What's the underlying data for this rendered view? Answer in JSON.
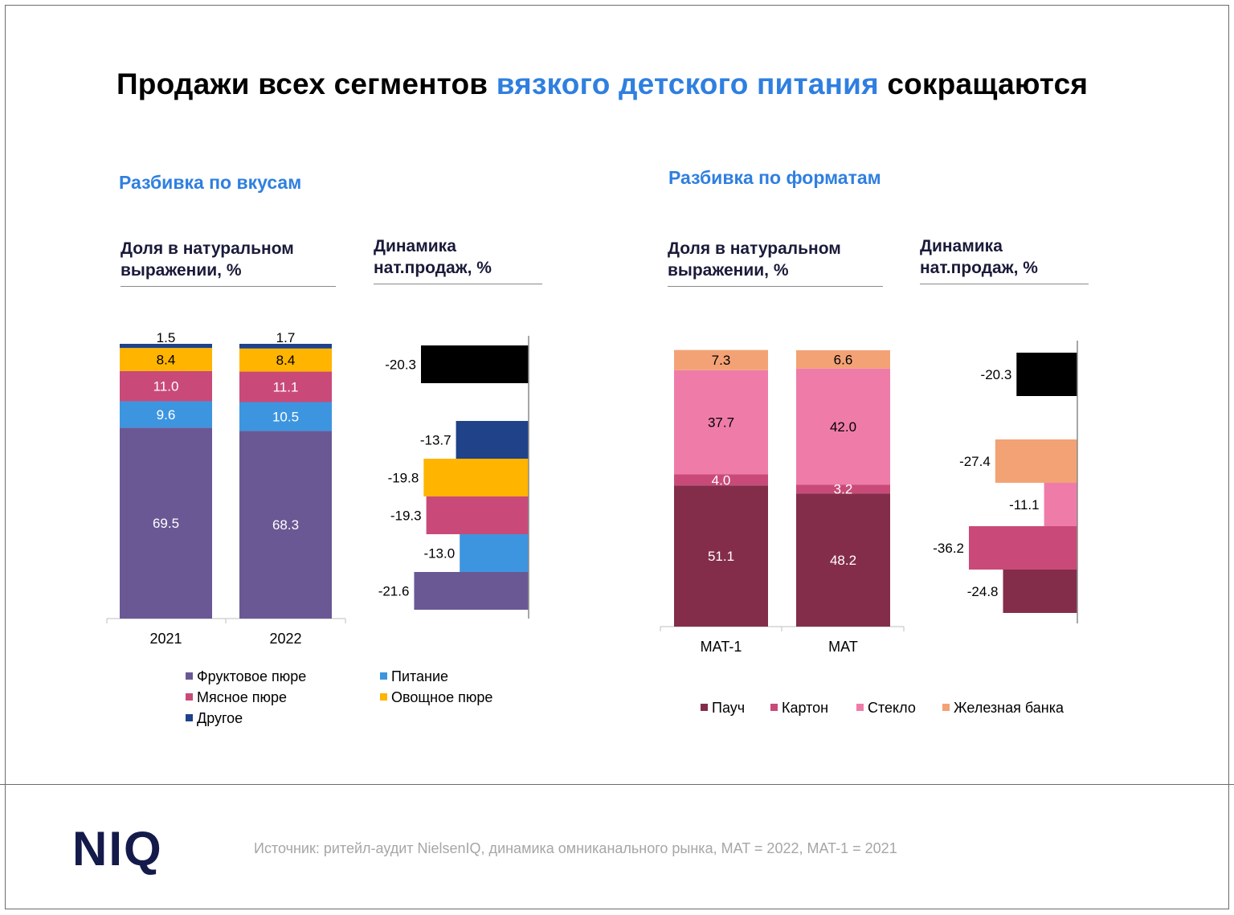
{
  "title": {
    "part1": "Продажи всех сегментов ",
    "highlight": "вязкого детского питания",
    "part2": " сокращаются"
  },
  "left": {
    "subtitle": "Разбивка по вкусам",
    "share_header": "Доля в натуральном выражении, %",
    "dyn_header": "Динамика нат.продаж, %"
  },
  "right": {
    "subtitle": "Разбивка по форматам",
    "share_header": "Доля в натуральном выражении, %",
    "dyn_header": "Динамика нат.продаж, %"
  },
  "colors": {
    "fruit": "#6a5895",
    "nutrition": "#3d95e0",
    "meat": "#c94a78",
    "veg": "#ffb400",
    "other": "#1f4289",
    "pouch": "#842d4a",
    "carton": "#c94a78",
    "glass": "#ef7ca8",
    "can": "#f3a276",
    "total": "#000000"
  },
  "chart_data": [
    {
      "type": "bar",
      "stacked": true,
      "name": "taste-share",
      "categories": [
        "2021",
        "2022"
      ],
      "series": [
        {
          "name": "Фруктовое пюре",
          "color_key": "fruit",
          "values": [
            69.5,
            68.3
          ],
          "labels": [
            "69.5",
            "68.3"
          ]
        },
        {
          "name": "Питание",
          "color_key": "nutrition",
          "values": [
            9.6,
            10.5
          ],
          "labels": [
            "9.6",
            "10.5"
          ]
        },
        {
          "name": "Мясное пюре",
          "color_key": "meat",
          "values": [
            11.0,
            11.1
          ],
          "labels": [
            "11.0",
            "11.1"
          ]
        },
        {
          "name": "Овощное пюре",
          "color_key": "veg",
          "values": [
            8.4,
            8.4
          ],
          "labels": [
            "8.4",
            "8.4"
          ]
        },
        {
          "name": "Другое",
          "color_key": "other",
          "values": [
            1.5,
            1.7
          ],
          "labels": [
            "1.5",
            "1.7"
          ]
        }
      ],
      "ylim": [
        0,
        100
      ]
    },
    {
      "type": "bar",
      "orientation": "horizontal",
      "name": "taste-dynamics",
      "rows": [
        {
          "label": "-20.3",
          "value": -20.3,
          "color_key": "total",
          "gap_after": true
        },
        {
          "label": "-13.7",
          "value": -13.7,
          "color_key": "other"
        },
        {
          "label": "-19.8",
          "value": -19.8,
          "color_key": "veg"
        },
        {
          "label": "-19.3",
          "value": -19.3,
          "color_key": "meat"
        },
        {
          "label": "-13.0",
          "value": -13.0,
          "color_key": "nutrition"
        },
        {
          "label": "-21.6",
          "value": -21.6,
          "color_key": "fruit"
        }
      ],
      "xlim": [
        -22.5,
        0
      ]
    },
    {
      "type": "bar",
      "stacked": true,
      "name": "format-share",
      "categories": [
        "MAT-1",
        "MAT"
      ],
      "series": [
        {
          "name": "Пауч",
          "color_key": "pouch",
          "values": [
            51.1,
            48.2
          ],
          "labels": [
            "51.1",
            "48.2"
          ]
        },
        {
          "name": "Картон",
          "color_key": "carton",
          "values": [
            4.0,
            3.2
          ],
          "labels": [
            "4.0",
            "3.2"
          ]
        },
        {
          "name": "Стекло",
          "color_key": "glass",
          "values": [
            37.7,
            42.0
          ],
          "labels": [
            "37.7",
            "42.0"
          ]
        },
        {
          "name": "Железная банка",
          "color_key": "can",
          "values": [
            7.3,
            6.6
          ],
          "labels": [
            "7.3",
            "6.6"
          ]
        }
      ],
      "ylim": [
        0,
        100
      ]
    },
    {
      "type": "bar",
      "orientation": "horizontal",
      "name": "format-dynamics",
      "rows": [
        {
          "label": "-20.3",
          "value": -20.3,
          "color_key": "total",
          "gap_after": true
        },
        {
          "label": "-27.4",
          "value": -27.4,
          "color_key": "can"
        },
        {
          "label": "-11.1",
          "value": -11.1,
          "color_key": "glass"
        },
        {
          "label": "-36.2",
          "value": -36.2,
          "color_key": "carton"
        },
        {
          "label": "-24.8",
          "value": -24.8,
          "color_key": "pouch"
        }
      ],
      "xlim": [
        -36.2,
        0
      ]
    }
  ],
  "legend_left": [
    {
      "label": "Фруктовое пюре",
      "color_key": "fruit"
    },
    {
      "label": "Питание",
      "color_key": "nutrition"
    },
    {
      "label": "Мясное пюре",
      "color_key": "meat"
    },
    {
      "label": "Овощное пюре",
      "color_key": "veg"
    },
    {
      "label": "Другое",
      "color_key": "other"
    }
  ],
  "legend_right": [
    {
      "label": "Пауч",
      "color_key": "pouch"
    },
    {
      "label": "Картон",
      "color_key": "carton"
    },
    {
      "label": "Стекло",
      "color_key": "glass"
    },
    {
      "label": "Железная банка",
      "color_key": "can"
    }
  ],
  "footer": {
    "logo": "NIQ",
    "source": "Источник: ритейл-аудит NielsenIQ, динамика омниканального рынка, MAT = 2022, MAT-1 = 2021"
  }
}
